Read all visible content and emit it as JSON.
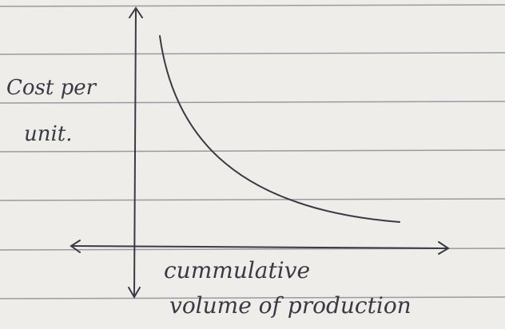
{
  "y_label": [
    "Cost per",
    "unit."
  ],
  "x_label": [
    "cummulative",
    "volume of production"
  ]
}
